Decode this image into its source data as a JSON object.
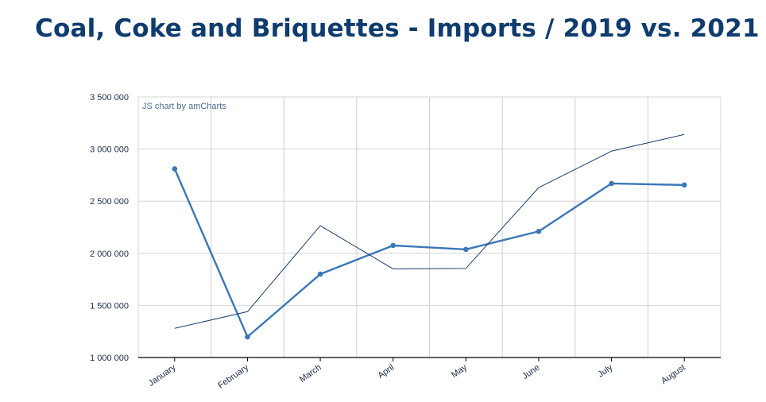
{
  "chart_data": {
    "type": "line",
    "title": "Coal, Coke and Briquettes - Imports / 2019 vs. 2021",
    "credit": "JS chart by amCharts",
    "categories": [
      "January",
      "February",
      "March",
      "April",
      "May",
      "June",
      "July",
      "August"
    ],
    "y_tick_labels": [
      "1 000 000",
      "1 500 000",
      "2 000 000",
      "2 500 000",
      "3 000 000",
      "3 500 000"
    ],
    "ylim": [
      1000000,
      3500000
    ],
    "grid": true,
    "series": [
      {
        "values": [
          2810000,
          1198000,
          1800000,
          2075000,
          2037000,
          2210000,
          2670000,
          2655000
        ],
        "color": "#3a78b8",
        "style": "thick-with-markers"
      },
      {
        "values": [
          1280000,
          1440000,
          2265000,
          1850000,
          1855000,
          2630000,
          2980000,
          3140000
        ],
        "color": "#1a3e6a",
        "style": "thin"
      }
    ]
  }
}
